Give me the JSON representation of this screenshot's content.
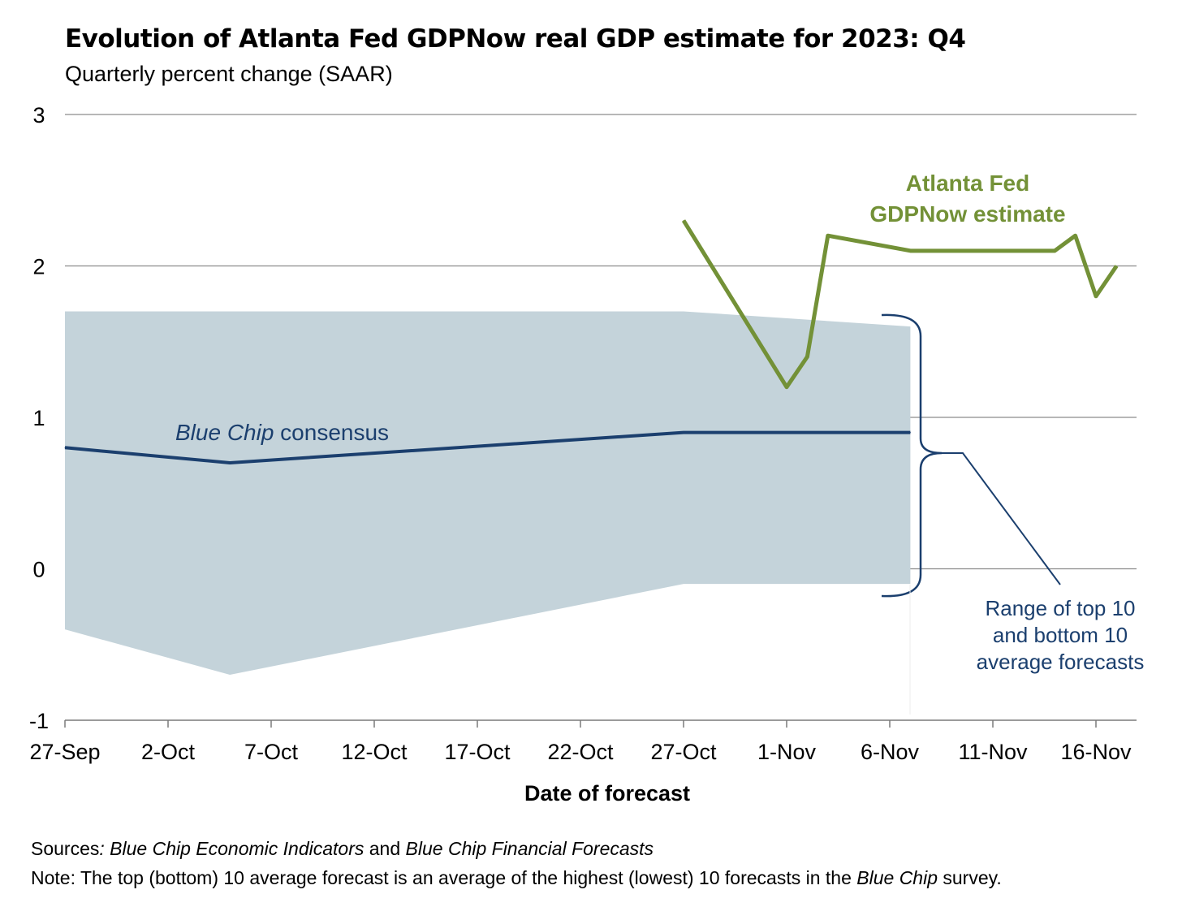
{
  "chart_data": {
    "type": "line",
    "title": "Evolution of Atlanta Fed GDPNow real GDP estimate for 2023: Q4",
    "subtitle": "Quarterly percent change (SAAR)",
    "xlabel": "Date of forecast",
    "ylabel": "",
    "ylim": [
      -1,
      3
    ],
    "yticks": [
      -1,
      0,
      1,
      2,
      3
    ],
    "xlim": [
      "2023-09-27",
      "2023-11-20"
    ],
    "xticks": [
      {
        "date": "2023-09-27",
        "label": "27-Sep"
      },
      {
        "date": "2023-10-02",
        "label": "2-Oct"
      },
      {
        "date": "2023-10-07",
        "label": "7-Oct"
      },
      {
        "date": "2023-10-12",
        "label": "12-Oct"
      },
      {
        "date": "2023-10-17",
        "label": "17-Oct"
      },
      {
        "date": "2023-10-22",
        "label": "22-Oct"
      },
      {
        "date": "2023-10-27",
        "label": "27-Oct"
      },
      {
        "date": "2023-11-01",
        "label": "1-Nov"
      },
      {
        "date": "2023-11-06",
        "label": "6-Nov"
      },
      {
        "date": "2023-11-11",
        "label": "11-Nov"
      },
      {
        "date": "2023-11-16",
        "label": "16-Nov"
      }
    ],
    "grid": "horizontal",
    "colors": {
      "gdpnow": "#739137",
      "bluechip": "#1b3f6e",
      "range": "#c4d3da",
      "annotation": "#1b3f6e"
    },
    "series": [
      {
        "name": "Atlanta Fed GDPNow estimate",
        "label_lines": [
          "Atlanta Fed",
          "GDPNow estimate"
        ],
        "points": [
          {
            "x": "2023-10-27",
            "y": 2.3
          },
          {
            "x": "2023-11-01",
            "y": 1.2
          },
          {
            "x": "2023-11-02",
            "y": 1.4
          },
          {
            "x": "2023-11-03",
            "y": 2.2
          },
          {
            "x": "2023-11-07",
            "y": 2.1
          },
          {
            "x": "2023-11-14",
            "y": 2.1
          },
          {
            "x": "2023-11-15",
            "y": 2.2
          },
          {
            "x": "2023-11-16",
            "y": 1.8
          },
          {
            "x": "2023-11-17",
            "y": 2.0
          }
        ]
      },
      {
        "name": "Blue Chip consensus",
        "label_italic": "Blue Chip",
        "label_rest": " consensus",
        "points": [
          {
            "x": "2023-09-27",
            "y": 0.8
          },
          {
            "x": "2023-10-05",
            "y": 0.7
          },
          {
            "x": "2023-10-27",
            "y": 0.9
          },
          {
            "x": "2023-11-07",
            "y": 0.9
          }
        ]
      }
    ],
    "range_band": {
      "label_lines": [
        "Range of top 10",
        "and bottom 10",
        "average forecasts"
      ],
      "upper": [
        {
          "x": "2023-09-27",
          "y": 1.7
        },
        {
          "x": "2023-10-27",
          "y": 1.7
        },
        {
          "x": "2023-11-07",
          "y": 1.6
        }
      ],
      "lower": [
        {
          "x": "2023-09-27",
          "y": -0.4
        },
        {
          "x": "2023-10-05",
          "y": -0.7
        },
        {
          "x": "2023-10-27",
          "y": -0.1
        },
        {
          "x": "2023-11-07",
          "y": -0.1
        }
      ]
    }
  },
  "footer": {
    "sources_label": "Sources",
    "sources_colon": ":",
    "sources_text_1": " Blue Chip Economic Indicators",
    "sources_and": " and ",
    "sources_text_2": "Blue Chip Financial Forecasts",
    "note_label": "Note",
    "note_text": ": The top (bottom) 10 average forecast is an average of the highest (lowest) 10 forecasts in the ",
    "note_italic": "Blue Chip",
    "note_end": " survey."
  }
}
